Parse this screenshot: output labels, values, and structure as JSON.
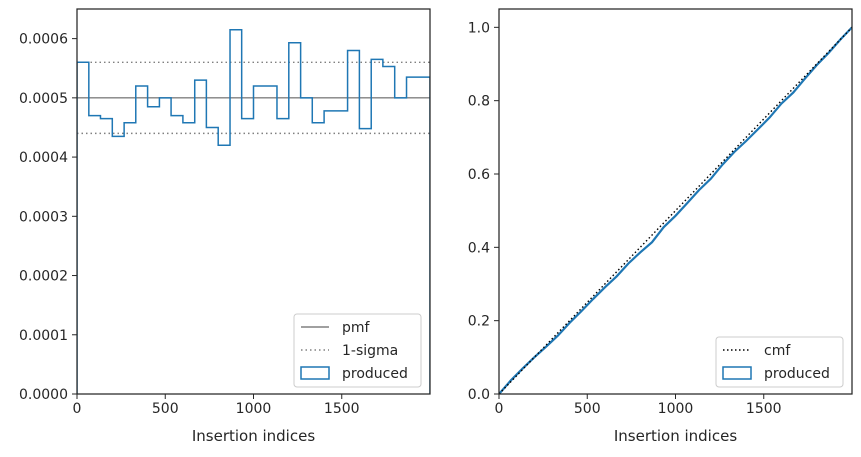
{
  "colors": {
    "produced": "#1f77b4",
    "reference": "#808080",
    "cmf": "#000000",
    "axis": "#262626",
    "legend_border": "#cccccc"
  },
  "chart_data": [
    {
      "type": "histogram",
      "xlabel": "Insertion indices",
      "ylabel": "",
      "xlim": [
        0,
        2000
      ],
      "ylim": [
        0,
        0.00065
      ],
      "xticks": [
        0,
        500,
        1000,
        1500
      ],
      "xtick_labels": [
        "0",
        "500",
        "1000",
        "1500"
      ],
      "yticks": [
        0,
        0.0001,
        0.0002,
        0.0003,
        0.0004,
        0.0005,
        0.0006
      ],
      "ytick_labels": [
        "0.0000",
        "0.0001",
        "0.0002",
        "0.0003",
        "0.0004",
        "0.0005",
        "0.0006"
      ],
      "pmf": 0.0005,
      "sigma_lower": 0.00044,
      "sigma_upper": 0.00056,
      "bin_edges": [
        0,
        67,
        133,
        200,
        267,
        333,
        400,
        467,
        533,
        600,
        667,
        733,
        800,
        867,
        933,
        1000,
        1067,
        1133,
        1200,
        1267,
        1333,
        1400,
        1467,
        1533,
        1600,
        1667,
        1733,
        1800,
        1867,
        1933,
        2000
      ],
      "produced": [
        0.00056,
        0.00047,
        0.000465,
        0.000435,
        0.000458,
        0.00052,
        0.000485,
        0.0005,
        0.00047,
        0.000458,
        0.00053,
        0.00045,
        0.00042,
        0.000615,
        0.000465,
        0.00052,
        0.00052,
        0.000465,
        0.000593,
        0.0005,
        0.000458,
        0.000478,
        0.000478,
        0.00058,
        0.000448,
        0.000565,
        0.000553,
        0.0005,
        0.000535,
        0.000535
      ],
      "legend": [
        "pmf",
        "1-sigma",
        "produced"
      ],
      "legend_position": "lower right"
    },
    {
      "type": "line",
      "xlabel": "Insertion indices",
      "ylabel": "",
      "xlim": [
        0,
        2000
      ],
      "ylim": [
        0,
        1.05
      ],
      "xticks": [
        0,
        500,
        1000,
        1500
      ],
      "xtick_labels": [
        "0",
        "500",
        "1000",
        "1500"
      ],
      "yticks": [
        0,
        0.2,
        0.4,
        0.6,
        0.8,
        1.0
      ],
      "ytick_labels": [
        "0.0",
        "0.2",
        "0.4",
        "0.6",
        "0.8",
        "1.0"
      ],
      "cmf": {
        "x": [
          0,
          2000
        ],
        "y": [
          0,
          1.0
        ]
      },
      "produced": {
        "x": [
          0,
          67,
          133,
          200,
          267,
          333,
          400,
          467,
          533,
          600,
          667,
          733,
          800,
          867,
          933,
          1000,
          1067,
          1133,
          1200,
          1267,
          1333,
          1400,
          1467,
          1533,
          1600,
          1667,
          1733,
          1800,
          1867,
          1933,
          2000
        ],
        "y": [
          0,
          0.037,
          0.069,
          0.1,
          0.129,
          0.159,
          0.194,
          0.226,
          0.259,
          0.291,
          0.321,
          0.356,
          0.386,
          0.414,
          0.455,
          0.486,
          0.521,
          0.556,
          0.587,
          0.626,
          0.66,
          0.69,
          0.722,
          0.754,
          0.792,
          0.822,
          0.86,
          0.897,
          0.93,
          0.966,
          1.0
        ]
      },
      "legend": [
        "cmf",
        "produced"
      ],
      "legend_position": "lower right"
    }
  ]
}
